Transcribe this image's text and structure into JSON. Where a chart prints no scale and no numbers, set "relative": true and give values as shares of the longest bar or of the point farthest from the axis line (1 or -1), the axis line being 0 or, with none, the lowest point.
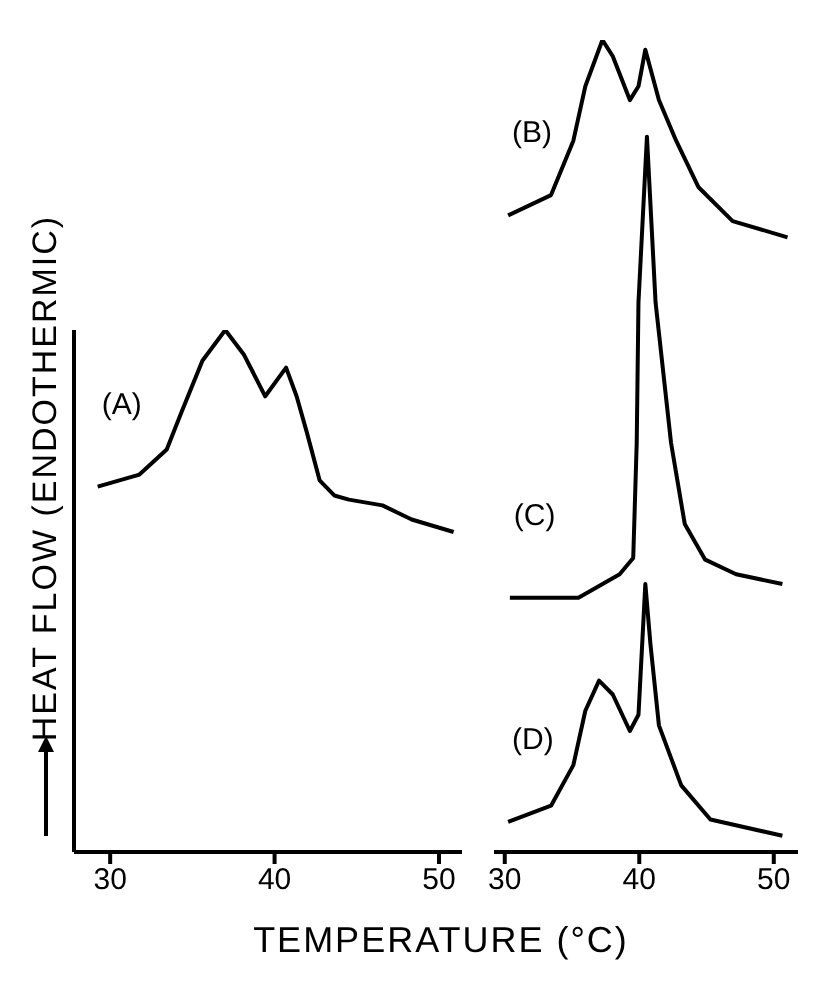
{
  "chart_data": [
    {
      "type": "line",
      "relative": true,
      "ylabel": "HEAT FLOW (ENDOTHERMIC)",
      "xlabel": "TEMPERATURE (°C)",
      "xlim": [
        27.8,
        51.4
      ],
      "xticks": [
        30,
        40,
        50
      ],
      "series": [
        {
          "name": "(A)",
          "color": "#000000",
          "x": [
            29.24,
            31.78,
            33.44,
            34.33,
            35.61,
            37.0,
            38.15,
            39.43,
            40.7,
            41.34,
            41.97,
            42.74,
            43.63,
            44.52,
            46.56,
            48.34,
            50.89
          ],
          "values": [
            0.7,
            0.723,
            0.771,
            0.842,
            0.941,
            1.0,
            0.952,
            0.873,
            0.928,
            0.873,
            0.803,
            0.712,
            0.683,
            0.675,
            0.664,
            0.637,
            0.613
          ]
        }
      ]
    },
    {
      "type": "line",
      "relative": true,
      "xlim": [
        29.2,
        51.8
      ],
      "xticks": [
        30,
        40,
        50
      ],
      "series": [
        {
          "name": "(B)",
          "color": "#000000",
          "x": [
            30.25,
            33.44,
            35.1,
            35.99,
            37.26,
            38.03,
            39.3,
            39.94,
            40.45,
            41.46,
            42.74,
            44.39,
            46.94,
            51.02
          ],
          "values": [
            0.784,
            0.809,
            0.876,
            0.943,
            1.0,
            0.98,
            0.926,
            0.943,
            0.988,
            0.926,
            0.876,
            0.819,
            0.777,
            0.757
          ]
        },
        {
          "name": "(C)",
          "color": "#000000",
          "x": [
            30.38,
            35.48,
            36.75,
            38.54,
            39.55,
            39.81,
            39.94,
            40.57,
            41.21,
            42.36,
            43.38,
            44.9,
            47.2,
            50.64
          ],
          "values": [
            0.313,
            0.313,
            0.325,
            0.342,
            0.362,
            0.504,
            0.677,
            0.881,
            0.677,
            0.504,
            0.404,
            0.36,
            0.342,
            0.33
          ]
        },
        {
          "name": "(D)",
          "color": "#000000",
          "x": [
            30.25,
            33.44,
            35.1,
            35.99,
            37.01,
            38.03,
            39.3,
            39.94,
            40.45,
            40.83,
            41.46,
            43.12,
            45.29,
            50.64
          ],
          "values": [
            0.037,
            0.057,
            0.107,
            0.174,
            0.211,
            0.194,
            0.149,
            0.169,
            0.33,
            0.256,
            0.156,
            0.082,
            0.04,
            0.02
          ]
        }
      ]
    }
  ]
}
